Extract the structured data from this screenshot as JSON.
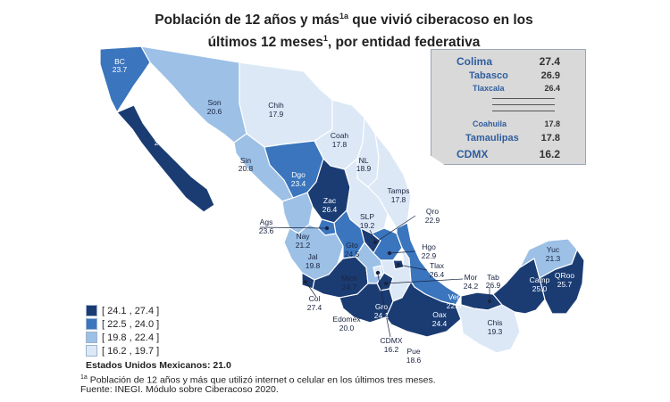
{
  "title": {
    "line1_a": "Población de 12 años y más",
    "line1_sup": "1a",
    "line1_b": " que vivió ciberacoso en los",
    "line2_a": "últimos 12 meses",
    "line2_sup": "1",
    "line2_b": ", por entidad federativa"
  },
  "colors": {
    "class1": "#1b3c73",
    "class2": "#3a75bd",
    "class3": "#9cc0e6",
    "class4": "#dce8f6",
    "border": "#ffffff",
    "ranking_bg": "#d9d9d9"
  },
  "ranking": {
    "top": [
      {
        "name": "Colima",
        "value": "27.4"
      },
      {
        "name": "Tabasco",
        "value": "26.9"
      },
      {
        "name": "Tlaxcala",
        "value": "26.4"
      }
    ],
    "bottom": [
      {
        "name": "Coahuila",
        "value": "17.8"
      },
      {
        "name": "Tamaulipas",
        "value": "17.8"
      },
      {
        "name": "CDMX",
        "value": "16.2"
      }
    ]
  },
  "legend": [
    {
      "label": "[ 24.1 , 27.4 ]",
      "color": "#1b3c73"
    },
    {
      "label": "[ 22.5 , 24.0 ]",
      "color": "#3a75bd"
    },
    {
      "label": "[ 19.8 , 22.4 ]",
      "color": "#9cc0e6"
    },
    {
      "label": "[ 16.2 , 19.7 ]",
      "color": "#dce8f6"
    }
  ],
  "national": "Estados Unidos Mexicanos:  21.0",
  "footnote_sup": "1a",
  "footnote": " Población de 12 años y más que utilizó internet o celular en los últimos tres meses.",
  "source": "Fuente:  INEGI. Módulo sobre Ciberacoso 2020.",
  "states": {
    "bc": {
      "abbr": "BC",
      "value": "23.7"
    },
    "bcs": {
      "abbr": "BCS",
      "value": "24.5"
    },
    "son": {
      "abbr": "Son",
      "value": "20.6"
    },
    "chih": {
      "abbr": "Chih",
      "value": "17.9"
    },
    "coah": {
      "abbr": "Coah",
      "value": "17.8"
    },
    "nl": {
      "abbr": "NL",
      "value": "18.9"
    },
    "tamps": {
      "abbr": "Tamps",
      "value": "17.8"
    },
    "sin": {
      "abbr": "Sin",
      "value": "20.8"
    },
    "dgo": {
      "abbr": "Dgo",
      "value": "23.4"
    },
    "zac": {
      "abbr": "Zac",
      "value": "26.4"
    },
    "slp": {
      "abbr": "SLP",
      "value": "19.2"
    },
    "ags": {
      "abbr": "Ags",
      "value": "23.6"
    },
    "nay": {
      "abbr": "Nay",
      "value": "21.2"
    },
    "jal": {
      "abbr": "Jal",
      "value": "19.8"
    },
    "gto": {
      "abbr": "Gto",
      "value": "24.5"
    },
    "qro": {
      "abbr": "Qro",
      "value": "22.9"
    },
    "hgo": {
      "abbr": "Hgo",
      "value": "22.9"
    },
    "tlax": {
      "abbr": "Tlax",
      "value": "26.4"
    },
    "mor": {
      "abbr": "Mor",
      "value": "24.2"
    },
    "ver": {
      "abbr": "Ver",
      "value": "22.5"
    },
    "tab": {
      "abbr": "Tab",
      "value": "26.9"
    },
    "camp": {
      "abbr": "Camp",
      "value": "25.0"
    },
    "yuc": {
      "abbr": "Yuc",
      "value": "21.3"
    },
    "qroo": {
      "abbr": "QRoo",
      "value": "25.7"
    },
    "col": {
      "abbr": "Col",
      "value": "27.4"
    },
    "mich": {
      "abbr": "Mich",
      "value": "24.7"
    },
    "edomex": {
      "abbr": "Edomex",
      "value": "20.0"
    },
    "gro": {
      "abbr": "Gro",
      "value": "24.1"
    },
    "cdmx": {
      "abbr": "CDMX",
      "value": "16.2"
    },
    "pue": {
      "abbr": "Pue",
      "value": "18.6"
    },
    "oax": {
      "abbr": "Oax",
      "value": "24.4"
    },
    "chis": {
      "abbr": "Chis",
      "value": "19.3"
    }
  }
}
